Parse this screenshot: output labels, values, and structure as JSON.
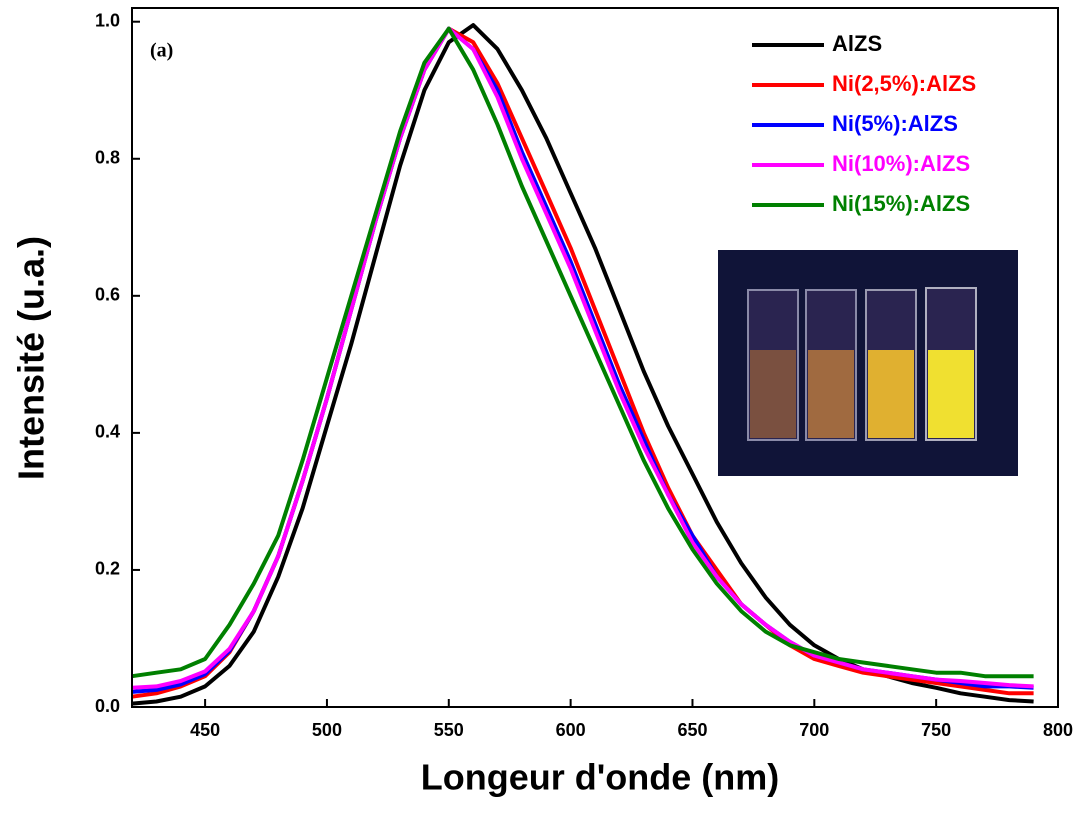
{
  "chart_data": {
    "type": "line",
    "annotation": "(a)",
    "xlabel": "Longeur d'onde (nm)",
    "ylabel": "Intensité (u.a.)",
    "xlim": [
      420,
      800
    ],
    "ylim": [
      0,
      1.02
    ],
    "xticks": [
      450,
      500,
      550,
      600,
      650,
      700,
      750,
      800
    ],
    "yticks": [
      {
        "value": 0,
        "label": "0.0"
      },
      0.2,
      0.4,
      0.6,
      0.8,
      {
        "value": 1,
        "label": "1.0"
      }
    ],
    "legend": "upper right",
    "x": [
      420,
      430,
      440,
      450,
      460,
      470,
      480,
      490,
      500,
      510,
      520,
      530,
      540,
      550,
      560,
      570,
      580,
      590,
      600,
      610,
      620,
      630,
      640,
      650,
      660,
      670,
      680,
      690,
      700,
      710,
      720,
      730,
      740,
      750,
      760,
      770,
      780,
      790
    ],
    "series": [
      {
        "name": "AlZS",
        "color": "#000000",
        "values": [
          0.005,
          0.008,
          0.015,
          0.03,
          0.06,
          0.11,
          0.19,
          0.29,
          0.41,
          0.53,
          0.66,
          0.79,
          0.9,
          0.97,
          0.995,
          0.96,
          0.9,
          0.83,
          0.75,
          0.67,
          0.58,
          0.49,
          0.41,
          0.34,
          0.27,
          0.21,
          0.16,
          0.12,
          0.09,
          0.07,
          0.055,
          0.045,
          0.035,
          0.028,
          0.02,
          0.015,
          0.01,
          0.008
        ]
      },
      {
        "name": "Ni(2,5%):AlZS",
        "color": "#ff0000",
        "values": [
          0.015,
          0.02,
          0.03,
          0.045,
          0.08,
          0.14,
          0.22,
          0.33,
          0.45,
          0.58,
          0.71,
          0.83,
          0.93,
          0.99,
          0.97,
          0.91,
          0.83,
          0.75,
          0.67,
          0.58,
          0.49,
          0.4,
          0.32,
          0.25,
          0.2,
          0.15,
          0.12,
          0.09,
          0.07,
          0.06,
          0.05,
          0.045,
          0.04,
          0.035,
          0.03,
          0.025,
          0.02,
          0.02
        ]
      },
      {
        "name": "Ni(5%):AlZS",
        "color": "#0000ff",
        "values": [
          0.022,
          0.025,
          0.033,
          0.048,
          0.082,
          0.14,
          0.22,
          0.33,
          0.45,
          0.58,
          0.71,
          0.83,
          0.93,
          0.99,
          0.96,
          0.9,
          0.81,
          0.73,
          0.65,
          0.56,
          0.47,
          0.39,
          0.31,
          0.25,
          0.19,
          0.15,
          0.12,
          0.095,
          0.075,
          0.065,
          0.055,
          0.05,
          0.045,
          0.04,
          0.035,
          0.03,
          0.03,
          0.028
        ]
      },
      {
        "name": "Ni(10%):AlZS",
        "color": "#ff00ff",
        "values": [
          0.028,
          0.03,
          0.038,
          0.052,
          0.085,
          0.14,
          0.22,
          0.33,
          0.45,
          0.58,
          0.71,
          0.83,
          0.93,
          0.99,
          0.96,
          0.89,
          0.8,
          0.72,
          0.64,
          0.55,
          0.46,
          0.38,
          0.31,
          0.24,
          0.19,
          0.15,
          0.12,
          0.095,
          0.075,
          0.065,
          0.055,
          0.05,
          0.045,
          0.04,
          0.038,
          0.035,
          0.032,
          0.03
        ]
      },
      {
        "name": "Ni(15%):AlZS",
        "color": "#008000",
        "values": [
          0.045,
          0.05,
          0.055,
          0.07,
          0.12,
          0.18,
          0.25,
          0.36,
          0.48,
          0.6,
          0.72,
          0.84,
          0.94,
          0.99,
          0.93,
          0.85,
          0.76,
          0.68,
          0.6,
          0.52,
          0.44,
          0.36,
          0.29,
          0.23,
          0.18,
          0.14,
          0.11,
          0.09,
          0.08,
          0.07,
          0.065,
          0.06,
          0.055,
          0.05,
          0.05,
          0.045,
          0.045,
          0.045
        ]
      }
    ]
  }
}
